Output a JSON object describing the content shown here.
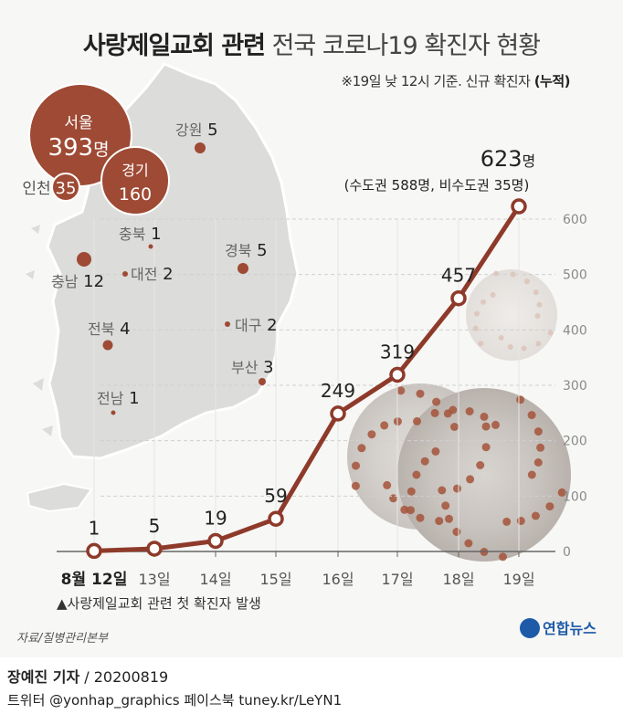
{
  "title": {
    "strong": "사랑제일교회 관련",
    "light": "전국 코로나19 확진자 현황"
  },
  "subtitle": {
    "prefix": "※19일 낮 12시 기준. 신규 확진자",
    "suffix": "(누적)"
  },
  "map": {
    "regions": [
      {
        "name": "서울",
        "count": "393명",
        "size": "large"
      },
      {
        "name": "경기",
        "count": "160",
        "size": "medium"
      },
      {
        "name": "인천",
        "count": "35",
        "size": "small"
      },
      {
        "name": "강원",
        "count": "5"
      },
      {
        "name": "충북",
        "count": "1"
      },
      {
        "name": "충남",
        "count": "12"
      },
      {
        "name": "대전",
        "count": "2"
      },
      {
        "name": "경북",
        "count": "5"
      },
      {
        "name": "전북",
        "count": "4"
      },
      {
        "name": "대구",
        "count": "2"
      },
      {
        "name": "부산",
        "count": "3"
      },
      {
        "name": "전남",
        "count": "1"
      }
    ],
    "bubble_color": "#9e4a34",
    "map_color": "#dcdcda"
  },
  "chart_data": {
    "type": "line",
    "categories": [
      "8월 12일",
      "13일",
      "14일",
      "15일",
      "16일",
      "17일",
      "18일",
      "19일"
    ],
    "series": [
      {
        "values": [
          1,
          5,
          19,
          59,
          249,
          319,
          457,
          623
        ]
      }
    ],
    "point_labels": [
      "1",
      "5",
      "19",
      "59",
      "249",
      "319",
      "457",
      "623명"
    ],
    "last_note": "(수도권 588명, 비수도권 35명)",
    "y_ticks": [
      0,
      100,
      200,
      300,
      400,
      500,
      600
    ],
    "ylim": [
      0,
      640
    ],
    "grid": true,
    "line_color": "#8e3a2a"
  },
  "annotation": "▲사랑제일교회 관련 첫 확진자 발생",
  "source": "자료/질병관리본부",
  "logo_text": "연합뉴스",
  "credit": {
    "reporter": "장예진 기자",
    "date": " / 20200819"
  },
  "social": "트위터 @yonhap_graphics  페이스북 tuney.kr/LeYN1"
}
